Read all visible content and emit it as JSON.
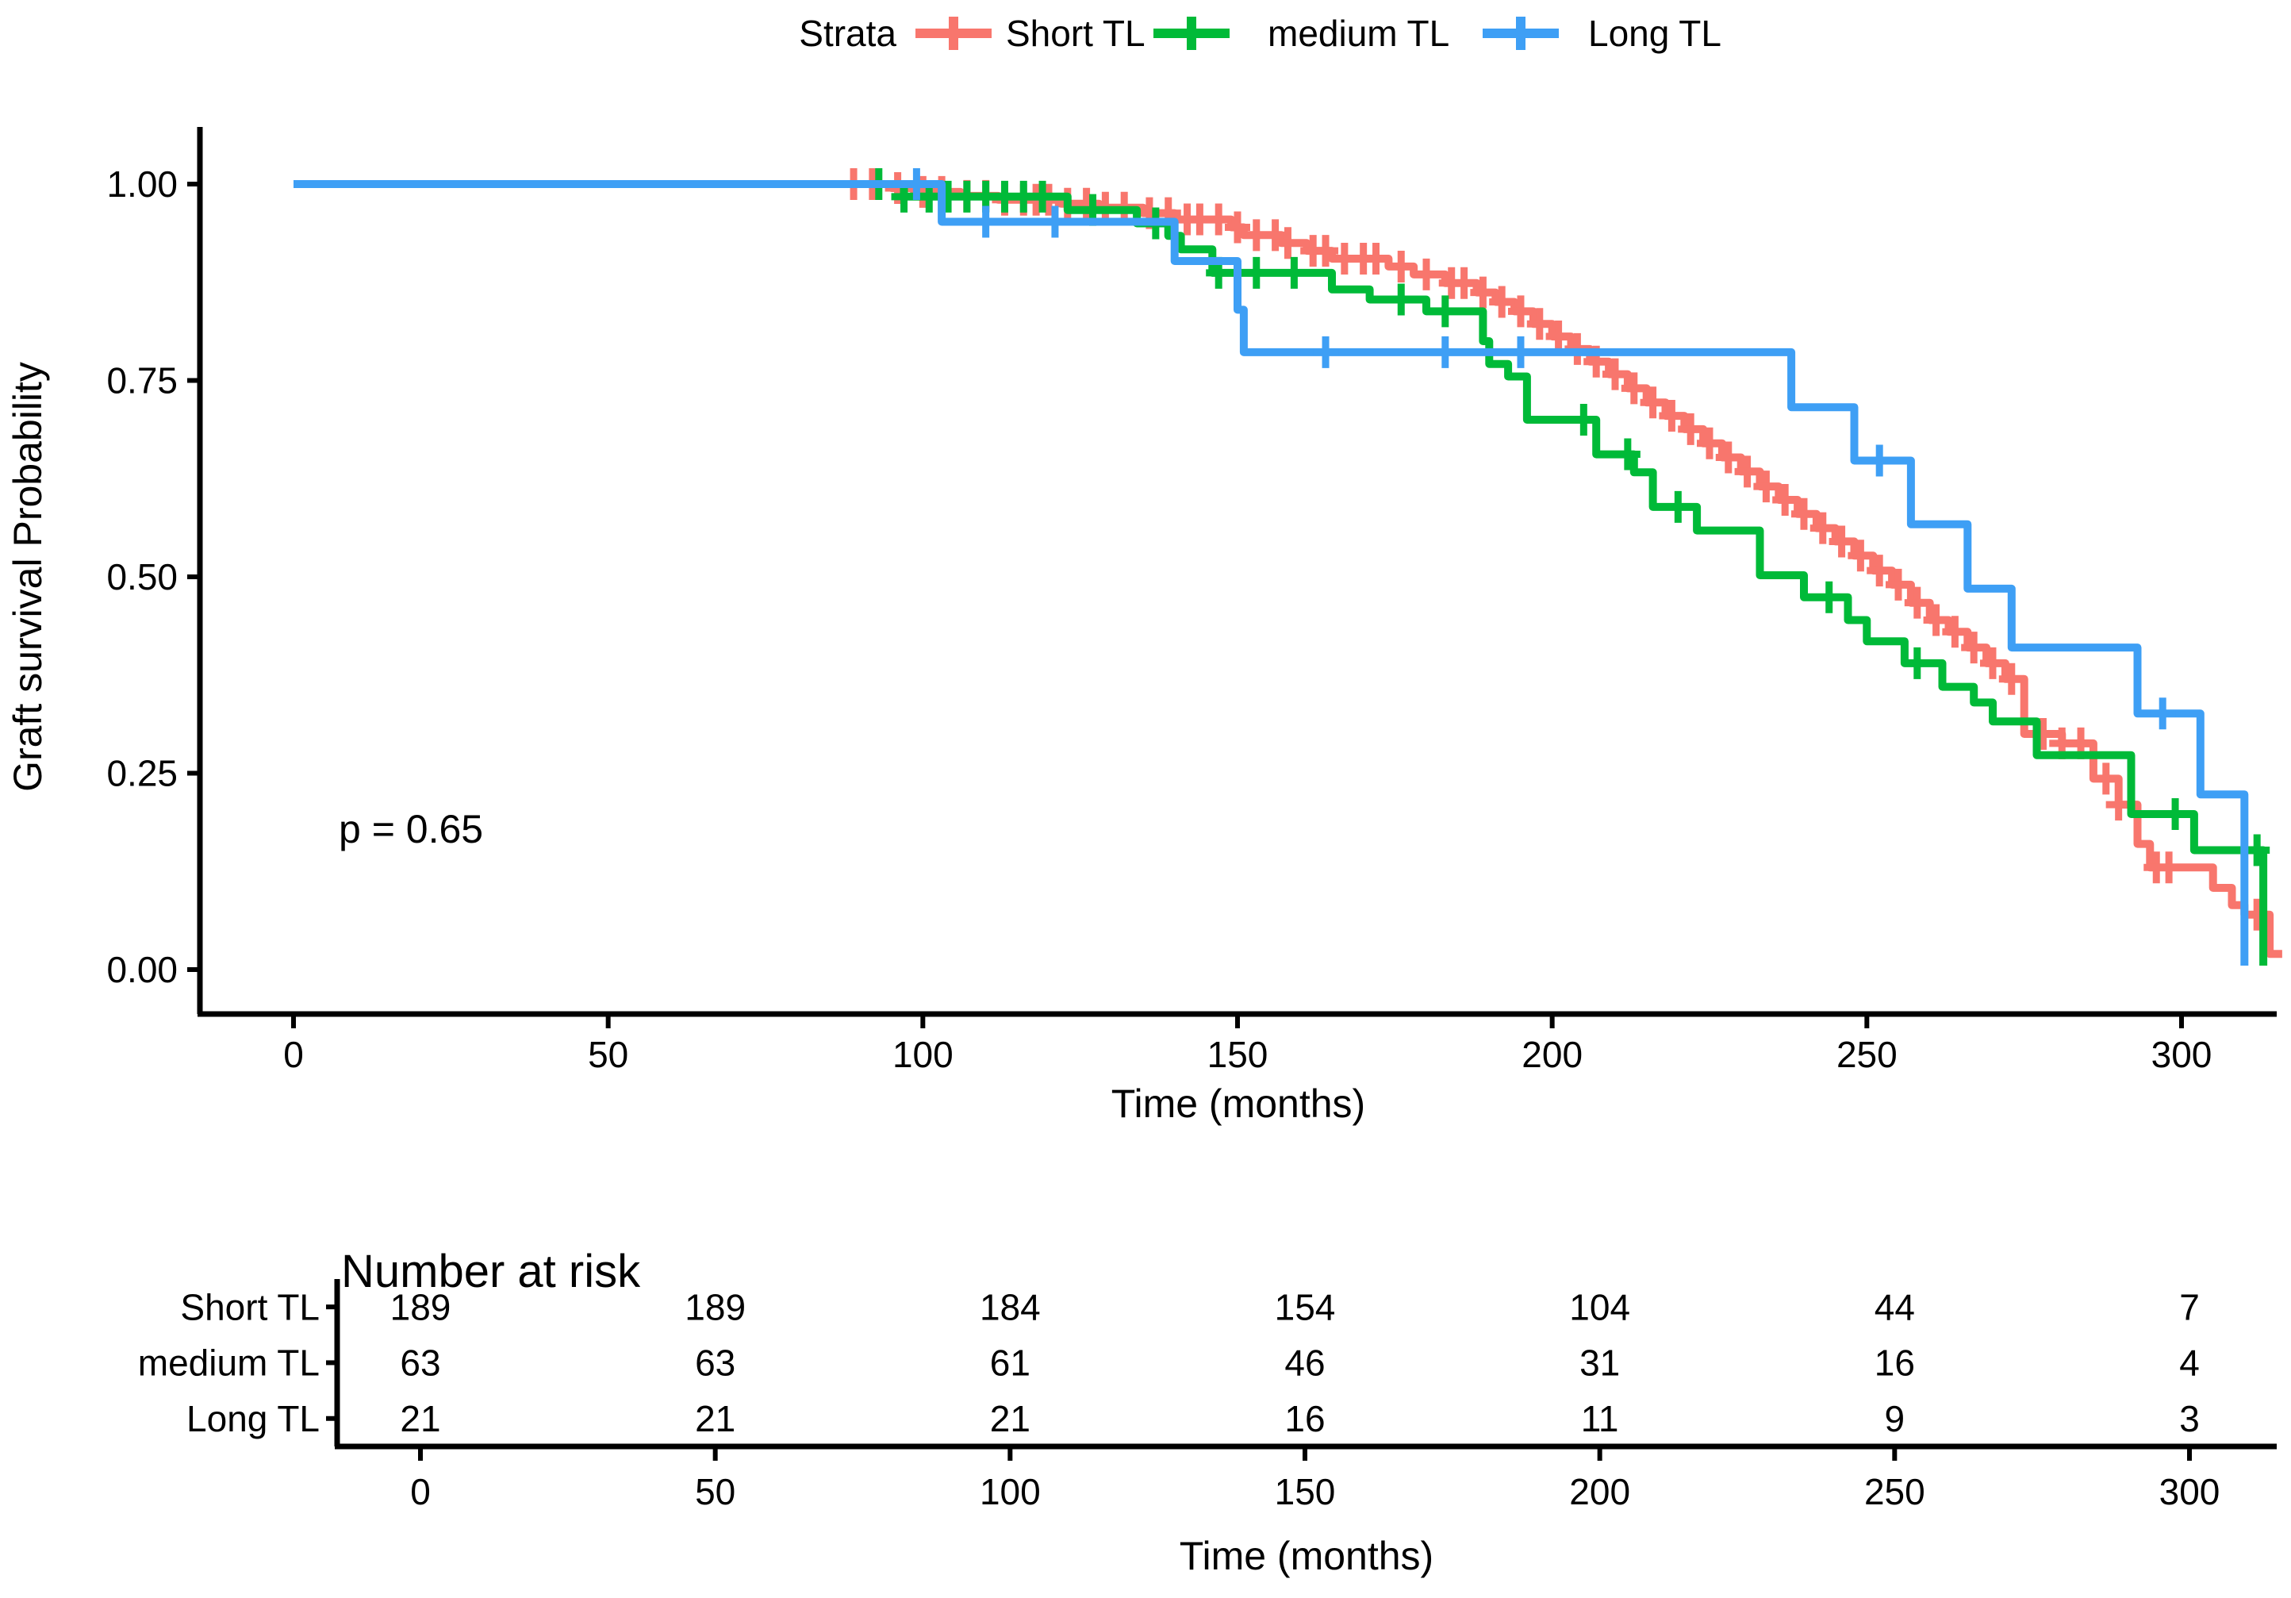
{
  "legend": {
    "title": "Strata",
    "items": [
      {
        "label": "Short TL",
        "color": "#F8766D"
      },
      {
        "label": "medium TL",
        "color": "#00BA38"
      },
      {
        "label": "Long TL",
        "color": "#3E9FF5"
      }
    ]
  },
  "axes": {
    "x_label": "Time (months)",
    "y_label": "Graft survival Probability",
    "x_ticks": [
      0,
      50,
      100,
      150,
      200,
      250,
      300
    ],
    "y_ticks": [
      "1.00",
      "0.75",
      "0.50",
      "0.25",
      "0.00"
    ],
    "y_tick_values": [
      1.0,
      0.75,
      0.5,
      0.25,
      0.0
    ],
    "x_range": [
      0,
      316
    ],
    "y_range": [
      0,
      1
    ]
  },
  "annotation": {
    "p_value": "p = 0.65"
  },
  "chart_data": {
    "type": "line",
    "subtype": "kaplan-meier-step",
    "title": "",
    "xlabel": "Time (months)",
    "ylabel": "Graft survival Probability",
    "xlim": [
      0,
      316
    ],
    "ylim": [
      0,
      1
    ],
    "legend_position": "top",
    "grid": false,
    "series": [
      {
        "name": "Short TL",
        "color": "#F8766D",
        "points": [
          [
            0,
            1.0
          ],
          [
            95,
            0.995
          ],
          [
            100,
            0.99
          ],
          [
            106,
            0.985
          ],
          [
            112,
            0.98
          ],
          [
            122,
            0.975
          ],
          [
            128,
            0.97
          ],
          [
            135,
            0.963
          ],
          [
            140,
            0.955
          ],
          [
            149,
            0.945
          ],
          [
            151,
            0.935
          ],
          [
            157,
            0.925
          ],
          [
            161,
            0.915
          ],
          [
            165,
            0.905
          ],
          [
            174,
            0.895
          ],
          [
            178,
            0.885
          ],
          [
            183,
            0.874
          ],
          [
            188,
            0.862
          ],
          [
            191,
            0.85
          ],
          [
            194,
            0.838
          ],
          [
            197,
            0.822
          ],
          [
            200,
            0.806
          ],
          [
            203,
            0.79
          ],
          [
            206,
            0.774
          ],
          [
            209,
            0.758
          ],
          [
            212,
            0.74
          ],
          [
            215,
            0.722
          ],
          [
            218,
            0.705
          ],
          [
            221,
            0.688
          ],
          [
            224,
            0.67
          ],
          [
            227,
            0.652
          ],
          [
            230,
            0.634
          ],
          [
            233,
            0.615
          ],
          [
            236,
            0.598
          ],
          [
            239,
            0.58
          ],
          [
            242,
            0.562
          ],
          [
            245,
            0.545
          ],
          [
            248,
            0.527
          ],
          [
            251,
            0.508
          ],
          [
            254,
            0.49
          ],
          [
            257,
            0.467
          ],
          [
            260,
            0.445
          ],
          [
            263,
            0.43
          ],
          [
            266,
            0.41
          ],
          [
            269,
            0.39
          ],
          [
            272,
            0.37
          ],
          [
            275,
            0.3
          ],
          [
            281,
            0.288
          ],
          [
            286,
            0.243
          ],
          [
            290,
            0.21
          ],
          [
            293,
            0.16
          ],
          [
            295,
            0.13
          ],
          [
            305,
            0.104
          ],
          [
            308,
            0.082
          ],
          [
            310,
            0.07
          ],
          [
            314,
            0.02
          ]
        ],
        "end_t": 316,
        "censors": [
          89,
          92,
          96,
          100,
          103,
          107,
          110,
          113,
          116,
          118,
          120,
          123,
          126,
          129,
          132,
          136,
          139,
          142,
          144,
          147,
          150,
          153,
          156,
          158,
          162,
          164,
          167,
          170,
          172,
          176,
          180,
          184,
          186,
          189,
          192,
          195,
          198,
          201,
          204,
          207,
          210,
          213,
          216,
          219,
          222,
          225,
          228,
          231,
          234,
          237,
          240,
          243,
          246,
          249,
          252,
          255,
          258,
          261,
          264,
          267,
          270,
          273,
          278,
          281,
          284,
          288,
          290,
          296,
          298,
          312
        ]
      },
      {
        "name": "medium TL",
        "color": "#00BA38",
        "points": [
          [
            0,
            1.0
          ],
          [
            97,
            0.984
          ],
          [
            123,
            0.967
          ],
          [
            134,
            0.95
          ],
          [
            139,
            0.934
          ],
          [
            141,
            0.917
          ],
          [
            146,
            0.887
          ],
          [
            165,
            0.866
          ],
          [
            171,
            0.853
          ],
          [
            180,
            0.838
          ],
          [
            189,
            0.8
          ],
          [
            190,
            0.771
          ],
          [
            193,
            0.755
          ],
          [
            196,
            0.7
          ],
          [
            207,
            0.656
          ],
          [
            213,
            0.633
          ],
          [
            216,
            0.589
          ],
          [
            223,
            0.559
          ],
          [
            233,
            0.502
          ],
          [
            240,
            0.474
          ],
          [
            247,
            0.445
          ],
          [
            250,
            0.418
          ],
          [
            256,
            0.39
          ],
          [
            262,
            0.36
          ],
          [
            267,
            0.34
          ],
          [
            270,
            0.316
          ],
          [
            277,
            0.273
          ],
          [
            292,
            0.198
          ],
          [
            302,
            0.152
          ],
          [
            313,
            0.005
          ]
        ],
        "end_t": null,
        "censors": [
          93,
          97,
          101,
          104,
          107,
          110,
          113,
          116,
          119,
          127,
          137,
          147,
          153,
          159,
          176,
          183,
          205,
          212,
          220,
          244,
          258,
          299,
          312
        ]
      },
      {
        "name": "Long TL",
        "color": "#3E9FF5",
        "points": [
          [
            0,
            1.0
          ],
          [
            103,
            0.952
          ],
          [
            140,
            0.902
          ],
          [
            150,
            0.84
          ],
          [
            151,
            0.786
          ],
          [
            238,
            0.716
          ],
          [
            248,
            0.648
          ],
          [
            257,
            0.567
          ],
          [
            266,
            0.485
          ],
          [
            273,
            0.41
          ],
          [
            293,
            0.326
          ],
          [
            303,
            0.223
          ],
          [
            310,
            0.005
          ]
        ],
        "end_t": null,
        "censors": [
          99,
          110,
          121,
          164,
          183,
          195,
          252,
          297
        ]
      }
    ]
  },
  "risk_table": {
    "title": "Number at risk",
    "x_label": "Time (months)",
    "x_ticks": [
      0,
      50,
      100,
      150,
      200,
      250,
      300
    ],
    "rows": [
      {
        "label": "Short TL",
        "color": "#F8766D",
        "values": [
          189,
          189,
          184,
          154,
          104,
          44,
          7
        ]
      },
      {
        "label": "medium TL",
        "color": "#00BA38",
        "values": [
          63,
          63,
          61,
          46,
          31,
          16,
          4
        ]
      },
      {
        "label": "Long TL",
        "color": "#3E9FF5",
        "values": [
          21,
          21,
          21,
          16,
          11,
          9,
          3
        ]
      }
    ]
  }
}
